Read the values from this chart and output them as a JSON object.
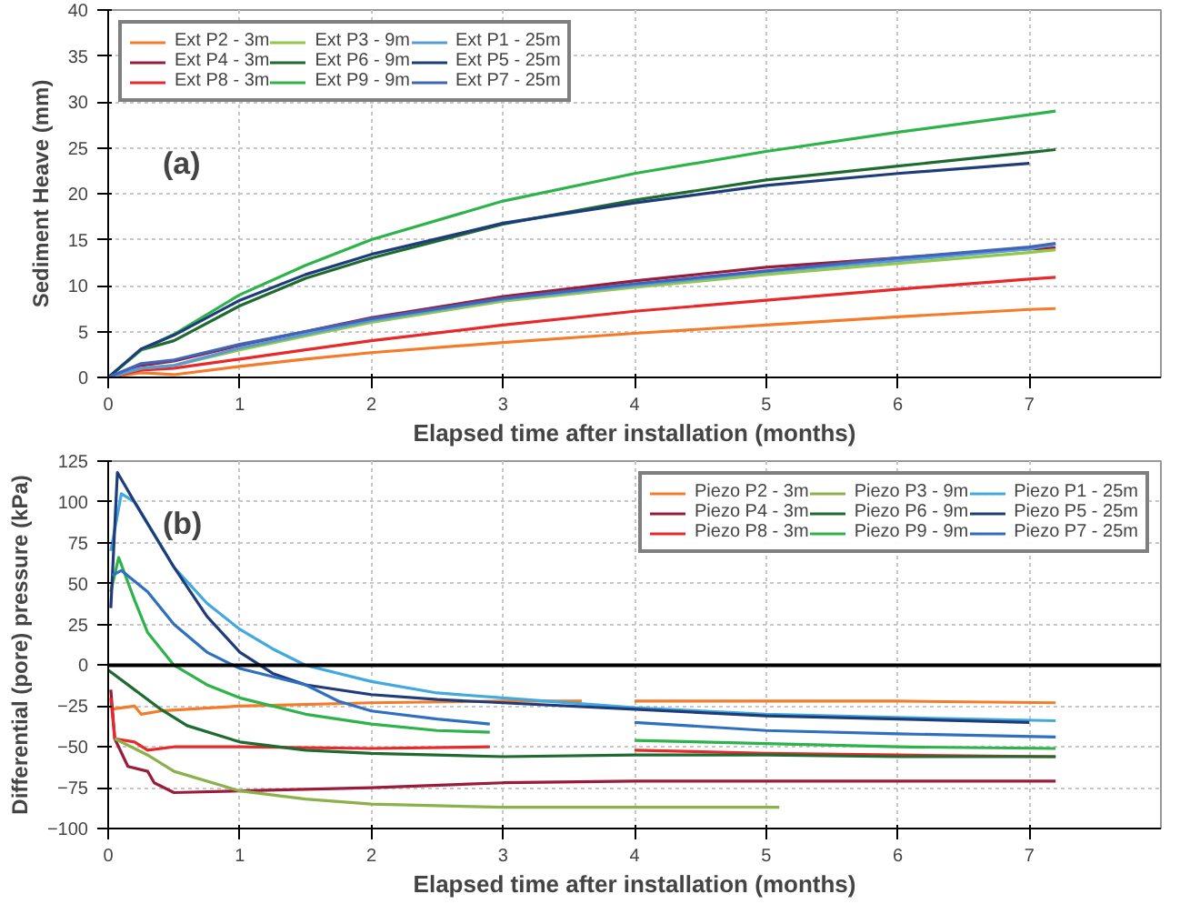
{
  "chart_data": [
    {
      "type": "line",
      "xlabel": "Elapsed time after installation (months)",
      "ylabel": "Sediment Heave (mm)",
      "annotations": [
        "(a)"
      ],
      "xlim": [
        0,
        8
      ],
      "xticks": [
        0,
        1,
        2,
        3,
        4,
        5,
        6,
        7
      ],
      "ylim": [
        0,
        40
      ],
      "yticks": [
        0,
        5,
        10,
        15,
        20,
        25,
        30,
        35,
        40
      ],
      "grid": true,
      "legend": "top left",
      "line_style": "solid",
      "x": [
        0,
        0.25,
        0.5,
        1,
        1.5,
        2,
        3,
        4,
        5,
        6,
        7,
        7.2
      ],
      "series": [
        {
          "name": "Ext P2 - 3m",
          "color": "#f47b2a",
          "values": [
            0,
            0.5,
            0.3,
            1.2,
            2,
            2.7,
            3.8,
            4.8,
            5.7,
            6.6,
            7.4,
            7.5
          ]
        },
        {
          "name": "Ext P4 - 3m",
          "color": "#9b1b3a",
          "values": [
            0,
            1.3,
            1.8,
            3.5,
            5,
            6.5,
            8.8,
            10.5,
            12,
            13,
            14,
            14.1
          ]
        },
        {
          "name": "Ext P8 - 3m",
          "color": "#e8282a",
          "values": [
            0,
            0.8,
            1,
            2,
            3,
            4,
            5.7,
            7.2,
            8.4,
            9.6,
            10.7,
            10.9
          ]
        },
        {
          "name": "Ext P3 - 9m",
          "color": "#8fc84a",
          "values": [
            0,
            1,
            1.3,
            3,
            4.5,
            6,
            8.3,
            9.8,
            11.2,
            12.4,
            13.6,
            13.9
          ]
        },
        {
          "name": "Ext P6 - 9m",
          "color": "#1e6b30",
          "values": [
            0,
            3,
            4,
            7.8,
            10.8,
            13,
            16.7,
            19.3,
            21.5,
            23,
            24.5,
            24.8
          ]
        },
        {
          "name": "Ext P9 - 9m",
          "color": "#2db34a",
          "values": [
            0,
            3,
            4.7,
            9,
            12.2,
            15,
            19.2,
            22.2,
            24.6,
            26.7,
            28.6,
            29
          ]
        },
        {
          "name": "Ext P1 - 25m",
          "color": "#5b9bd5",
          "values": [
            0,
            1,
            1.3,
            3.2,
            4.7,
            6.2,
            8.5,
            10,
            11.5,
            12.7,
            14,
            14.5
          ]
        },
        {
          "name": "Ext P5 - 25m",
          "color": "#1f3c7a",
          "values": [
            0,
            3.1,
            4.6,
            8.4,
            11.2,
            13.4,
            16.8,
            19,
            20.9,
            22.2,
            23.3,
            null
          ]
        },
        {
          "name": "Ext P7 - 25m",
          "color": "#3f64b8",
          "values": [
            0,
            1.5,
            1.9,
            3.6,
            5,
            6.4,
            8.6,
            10.2,
            11.6,
            13,
            14.2,
            14.6
          ]
        }
      ]
    },
    {
      "type": "line",
      "xlabel": "Elapsed time after installation (months)",
      "ylabel": "Differential (pore) pressure (kPa)",
      "annotations": [
        "(b)"
      ],
      "xlim": [
        0,
        8
      ],
      "xticks": [
        0,
        1,
        2,
        3,
        4,
        5,
        6,
        7
      ],
      "ylim": [
        -100,
        125
      ],
      "yticks": [
        -100,
        -75,
        -50,
        -25,
        0,
        25,
        50,
        75,
        100,
        125
      ],
      "grid": true,
      "legend": "top right",
      "line_style": "solid",
      "ref_lines": [
        {
          "axis": "y",
          "value": 0,
          "color": "#000000"
        }
      ],
      "series": [
        {
          "name": "Piezo P2 - 3m",
          "color": "#f47b2a",
          "x": [
            0.02,
            0.2,
            0.25,
            0.4,
            1,
            2,
            3,
            3.6,
            3.8,
            4,
            5,
            6,
            7.2
          ],
          "values": [
            -27,
            -25,
            -30,
            -28,
            -25,
            -23,
            -22,
            -22,
            null,
            -22,
            -22,
            -22,
            -23
          ]
        },
        {
          "name": "Piezo P4 - 3m",
          "color": "#9b1b3a",
          "x": [
            0.02,
            0.05,
            0.15,
            0.3,
            0.35,
            0.5,
            1,
            2,
            3,
            4,
            5,
            6,
            7.2
          ],
          "values": [
            -15,
            -45,
            -62,
            -65,
            -72,
            -78,
            -77,
            -75,
            -72,
            -71,
            -71,
            -71,
            -71
          ]
        },
        {
          "name": "Piezo P8 - 3m",
          "color": "#e8282a",
          "x": [
            0.02,
            0.05,
            0.2,
            0.3,
            0.5,
            1,
            2,
            2.9,
            3.5,
            4,
            5,
            6,
            7.2
          ],
          "values": [
            -20,
            -45,
            -47,
            -52,
            -50,
            -50,
            -51,
            -50,
            null,
            -52,
            -54,
            -55,
            -56
          ]
        },
        {
          "name": "Piezo P3 - 9m",
          "color": "#8cb04a",
          "x": [
            0.05,
            0.3,
            0.5,
            1,
            1.5,
            2,
            3,
            4,
            5.1
          ],
          "values": [
            -45,
            -55,
            -65,
            -77,
            -82,
            -85,
            -87,
            -87,
            -87
          ]
        },
        {
          "name": "Piezo P6 - 9m",
          "color": "#1e6b30",
          "x": [
            0,
            0.2,
            0.4,
            0.6,
            1,
            1.5,
            2,
            3,
            4,
            5,
            6,
            7.2
          ],
          "values": [
            -3,
            -15,
            -27,
            -37,
            -47,
            -52,
            -54,
            -56,
            -55,
            -55,
            -56,
            -56
          ]
        },
        {
          "name": "Piezo P9 - 9m",
          "color": "#2db34a",
          "x": [
            0.02,
            0.08,
            0.2,
            0.3,
            0.5,
            0.75,
            1,
            1.5,
            2,
            2.5,
            2.9,
            3.5,
            4,
            5,
            6,
            7.2
          ],
          "values": [
            45,
            66,
            40,
            20,
            0,
            -12,
            -20,
            -30,
            -36,
            -40,
            -41,
            null,
            -46,
            -48,
            -50,
            -51
          ]
        },
        {
          "name": "Piezo P1 - 25m",
          "color": "#41a9e0",
          "x": [
            0.02,
            0.1,
            0.2,
            0.5,
            0.75,
            1,
            1.25,
            1.5,
            2,
            2.5,
            3,
            4,
            5,
            6,
            7.2
          ],
          "values": [
            70,
            105,
            100,
            60,
            38,
            22,
            10,
            0,
            -10,
            -17,
            -20,
            -26,
            -30,
            -32,
            -34
          ]
        },
        {
          "name": "Piezo P5 - 25m",
          "color": "#1f3c7a",
          "x": [
            0.02,
            0.07,
            0.2,
            0.5,
            0.75,
            1,
            1.25,
            1.5,
            2,
            2.5,
            3,
            4,
            5,
            6,
            7
          ],
          "values": [
            35,
            118,
            100,
            60,
            30,
            8,
            -5,
            -12,
            -18,
            -21,
            -23,
            -27,
            -31,
            -33,
            -35
          ]
        },
        {
          "name": "Piezo P7 - 25m",
          "color": "#2f6fc0",
          "x": [
            0.03,
            0.1,
            0.3,
            0.5,
            0.75,
            1,
            1.5,
            1.75,
            2,
            2.5,
            2.9,
            3.5,
            4,
            5,
            6,
            7.2
          ],
          "values": [
            55,
            58,
            45,
            25,
            8,
            -2,
            -12,
            -22,
            -28,
            -33,
            -36,
            null,
            -35,
            -40,
            -42,
            -44
          ]
        }
      ]
    }
  ]
}
